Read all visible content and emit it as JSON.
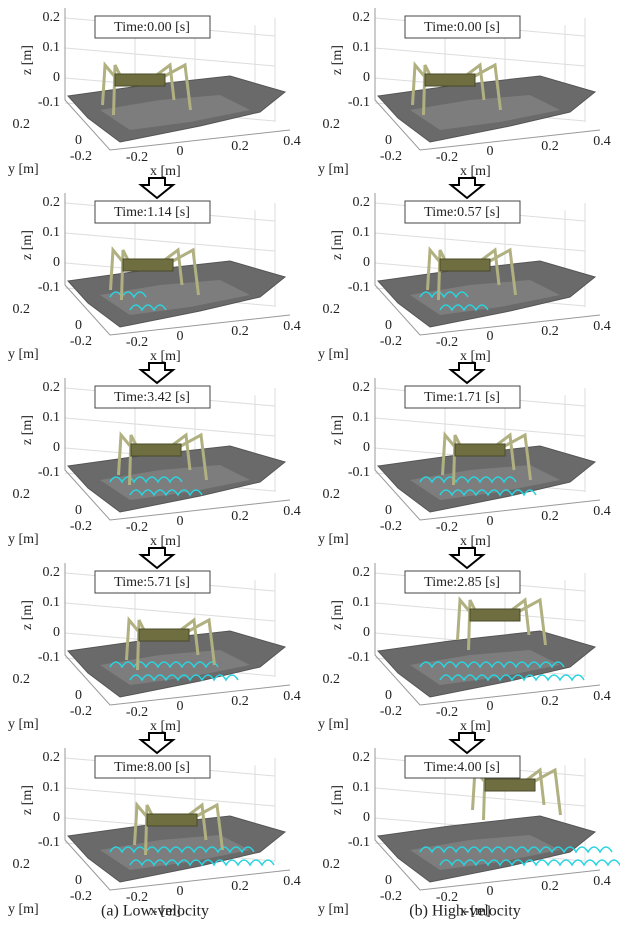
{
  "columns": [
    {
      "caption": "(a) Low-velocity",
      "panels": [
        {
          "time": "Time:0.00 [s]"
        },
        {
          "time": "Time:1.14 [s]"
        },
        {
          "time": "Time:3.42 [s]"
        },
        {
          "time": "Time:5.71 [s]"
        },
        {
          "time": "Time:8.00 [s]"
        }
      ]
    },
    {
      "caption": "(b) High-velocity",
      "panels": [
        {
          "time": "Time:0.00 [s]"
        },
        {
          "time": "Time:0.57 [s]"
        },
        {
          "time": "Time:1.71 [s]"
        },
        {
          "time": "Time:2.85 [s]"
        },
        {
          "time": "Time:4.00 [s]"
        }
      ]
    }
  ],
  "axes": {
    "z_label": "z [m]",
    "y_label": "y [m]",
    "x_label": "x [m]",
    "z_ticks": [
      "0.2",
      "0.1",
      "0",
      "-0.1"
    ],
    "y_ticks": [
      "0.2",
      "0",
      "-0.2"
    ],
    "x_ticks": [
      "-0.2",
      "0",
      "0.2",
      "0.4"
    ]
  }
}
